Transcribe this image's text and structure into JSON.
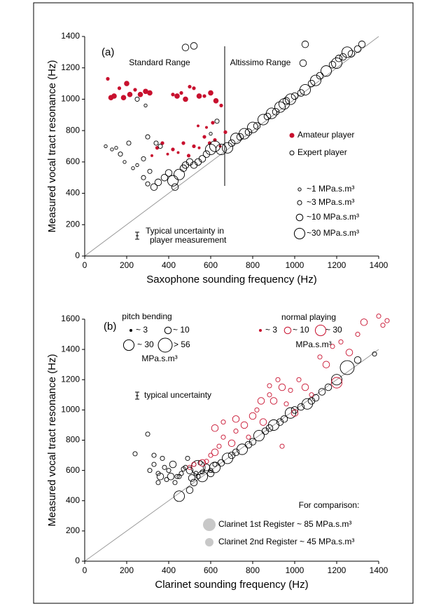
{
  "chart_data": [
    {
      "type": "scatter",
      "panel_label": "(a)",
      "x_label": "Saxophone sounding frequency (Hz)",
      "y_label": "Measured vocal tract resonance (Hz)",
      "xlim": [
        0,
        1400
      ],
      "ylim": [
        0,
        1400
      ],
      "xticks": [
        0,
        200,
        400,
        600,
        800,
        1000,
        1200,
        1400
      ],
      "yticks": [
        0,
        200,
        400,
        600,
        800,
        1000,
        1200,
        1400
      ],
      "annotations": [
        "Standard Range",
        "Altissimo Range"
      ],
      "uncertainty_note": [
        "Typical uncertainty in",
        "player measurement"
      ],
      "size_legend": [
        {
          "label": "~1 MPa.s.m³",
          "size": 1
        },
        {
          "label": "~3 MPa.s.m³",
          "size": 3
        },
        {
          "label": "~10 MPa.s.m³",
          "size": 10
        },
        {
          "label": "~30 MPa.s.m³",
          "size": 30
        }
      ],
      "series": [
        {
          "name": "Amateur player",
          "color": "#c8102e",
          "fill": true,
          "x": [
            110,
            125,
            140,
            165,
            185,
            200,
            215,
            240,
            265,
            290,
            310,
            420,
            440,
            460,
            480,
            500,
            520,
            545,
            570,
            600,
            625,
            650,
            320,
            345,
            370,
            395,
            420,
            445,
            470,
            495,
            520,
            545,
            570,
            595,
            620,
            645,
            670,
            540,
            580,
            610
          ],
          "values": [
            1130,
            1010,
            1020,
            1070,
            1010,
            1100,
            1030,
            1060,
            1030,
            1050,
            1040,
            1030,
            1020,
            1040,
            1000,
            1080,
            1070,
            1020,
            1020,
            1040,
            990,
            960,
            640,
            690,
            720,
            650,
            680,
            660,
            720,
            640,
            700,
            690,
            760,
            720,
            740,
            700,
            790,
            830,
            820,
            850
          ],
          "sizes": [
            3,
            10,
            10,
            3,
            10,
            10,
            10,
            3,
            10,
            10,
            10,
            3,
            10,
            3,
            10,
            3,
            3,
            10,
            3,
            10,
            10,
            3,
            1,
            3,
            3,
            1,
            3,
            1,
            3,
            3,
            3,
            1,
            3,
            3,
            3,
            1,
            3,
            1,
            1,
            3
          ]
        },
        {
          "name": "Expert player",
          "color": "#000000",
          "fill": false,
          "x": [
            100,
            130,
            150,
            170,
            190,
            210,
            230,
            250,
            280,
            300,
            310,
            330,
            350,
            380,
            400,
            420,
            430,
            450,
            470,
            480,
            500,
            520,
            540,
            560,
            580,
            600,
            620,
            280,
            300,
            340,
            360,
            290,
            250,
            650,
            680,
            700,
            720,
            740,
            760,
            780,
            800,
            820,
            850,
            870,
            890,
            910,
            930,
            950,
            960,
            980,
            1000,
            1030,
            1050,
            1080,
            1100,
            1120,
            1150,
            1180,
            1200,
            1210,
            1230,
            1250,
            1270,
            1300,
            1320,
            480,
            520,
            1050,
            1040,
            600,
            630
          ],
          "values": [
            700,
            680,
            690,
            650,
            600,
            720,
            560,
            580,
            620,
            760,
            540,
            440,
            470,
            500,
            530,
            480,
            440,
            520,
            560,
            580,
            600,
            580,
            600,
            620,
            650,
            680,
            700,
            500,
            460,
            720,
            700,
            960,
            1000,
            680,
            690,
            720,
            750,
            760,
            780,
            790,
            820,
            830,
            870,
            890,
            910,
            920,
            950,
            970,
            990,
            1000,
            1020,
            1040,
            1060,
            1100,
            1120,
            1150,
            1180,
            1220,
            1230,
            1260,
            1270,
            1300,
            1290,
            1320,
            1350,
            1330,
            1340,
            1350,
            1230,
            780,
            860
          ],
          "sizes": [
            1,
            1,
            1,
            3,
            1,
            3,
            1,
            1,
            3,
            3,
            3,
            10,
            10,
            10,
            10,
            30,
            10,
            30,
            10,
            10,
            10,
            10,
            10,
            10,
            10,
            30,
            30,
            3,
            3,
            3,
            3,
            1,
            3,
            30,
            30,
            10,
            30,
            10,
            30,
            10,
            30,
            10,
            30,
            10,
            30,
            10,
            30,
            30,
            10,
            30,
            10,
            10,
            30,
            10,
            30,
            10,
            30,
            10,
            30,
            10,
            10,
            30,
            10,
            10,
            10,
            10,
            10,
            10,
            10,
            1,
            3
          ]
        }
      ]
    },
    {
      "type": "scatter",
      "panel_label": "(b)",
      "x_label": "Clarinet sounding frequency (Hz)",
      "y_label": "Measured vocal tract resonance (Hz)",
      "xlim": [
        0,
        1400
      ],
      "ylim": [
        0,
        1600
      ],
      "xticks": [
        0,
        200,
        400,
        600,
        800,
        1000,
        1200,
        1400
      ],
      "yticks": [
        0,
        200,
        400,
        600,
        800,
        1000,
        1200,
        1400,
        1600
      ],
      "uncertainty_note": [
        "typical uncertainty"
      ],
      "pitch_bending": {
        "title": "pitch bending",
        "items": [
          {
            "label": "~ 3",
            "size": 3
          },
          {
            "label": "~ 10",
            "size": 10
          },
          {
            "label": "~ 30",
            "size": 30
          },
          {
            "label": "> 56",
            "size": 56
          }
        ],
        "unit": "MPa.s.m³"
      },
      "normal_playing": {
        "title": "normal playing",
        "items": [
          {
            "label": "~ 3",
            "size": 3
          },
          {
            "label": "~ 10",
            "size": 10
          },
          {
            "label": "~ 30",
            "size": 30
          }
        ],
        "unit": "MPa.s.m³"
      },
      "comparison": {
        "title": "For comparison:",
        "items": [
          "Clarinet 1st Register ~ 85 MPa.s.m³",
          "Clarinet 2nd Register ~ 45 MPa.s.m³"
        ]
      },
      "series": [
        {
          "name": "pitch bending",
          "color": "#000000",
          "fill": false,
          "x": [
            240,
            300,
            310,
            330,
            350,
            360,
            380,
            400,
            420,
            440,
            460,
            480,
            500,
            520,
            540,
            560,
            580,
            600,
            620,
            370,
            390,
            410,
            430,
            450,
            470,
            490,
            510,
            530,
            550,
            330,
            350,
            450,
            500,
            520,
            560,
            600,
            620,
            650,
            680,
            700,
            720,
            750,
            780,
            800,
            830,
            860,
            880,
            900,
            930,
            950,
            980,
            1000,
            1030,
            1060,
            1080,
            1100,
            1130,
            1160,
            1200,
            1250,
            1300,
            1380,
            540
          ],
          "values": [
            710,
            840,
            600,
            640,
            580,
            560,
            620,
            600,
            640,
            560,
            580,
            620,
            600,
            640,
            560,
            590,
            620,
            600,
            640,
            680,
            540,
            560,
            520,
            560,
            610,
            680,
            550,
            580,
            650,
            700,
            520,
            430,
            470,
            520,
            560,
            580,
            620,
            650,
            680,
            700,
            720,
            740,
            770,
            790,
            830,
            860,
            880,
            900,
            920,
            940,
            980,
            1000,
            1020,
            1040,
            1060,
            1080,
            1120,
            1150,
            1200,
            1280,
            1330,
            1370,
            620
          ],
          "sizes": [
            3,
            3,
            3,
            3,
            3,
            10,
            3,
            3,
            10,
            3,
            3,
            3,
            10,
            3,
            3,
            3,
            10,
            3,
            3,
            3,
            3,
            10,
            3,
            3,
            3,
            3,
            10,
            3,
            3,
            3,
            3,
            30,
            10,
            10,
            30,
            10,
            30,
            10,
            30,
            10,
            10,
            30,
            10,
            10,
            30,
            10,
            10,
            30,
            10,
            10,
            30,
            10,
            10,
            30,
            10,
            10,
            10,
            10,
            30,
            56,
            10,
            3,
            56
          ]
        },
        {
          "name": "normal playing",
          "color": "#c8102e",
          "fill": false,
          "x": [
            500,
            520,
            560,
            580,
            600,
            620,
            640,
            660,
            700,
            720,
            760,
            780,
            800,
            820,
            850,
            880,
            900,
            920,
            940,
            960,
            980,
            1000,
            1020,
            1050,
            1080,
            1120,
            1150,
            1180,
            1200,
            1220,
            1260,
            1300,
            1330,
            1400,
            1420,
            1440,
            940,
            620,
            660,
            720,
            840,
            880
          ],
          "values": [
            620,
            640,
            650,
            660,
            700,
            720,
            760,
            820,
            780,
            860,
            900,
            820,
            960,
            1000,
            920,
            1100,
            1060,
            1200,
            1150,
            1040,
            1130,
            980,
            1200,
            1150,
            1100,
            1350,
            1300,
            1420,
            1180,
            1450,
            1380,
            1500,
            1580,
            1620,
            1560,
            1590,
            760,
            880,
            920,
            940,
            1060,
            1160
          ],
          "sizes": [
            3,
            3,
            10,
            3,
            3,
            10,
            3,
            3,
            10,
            3,
            10,
            3,
            10,
            3,
            10,
            3,
            10,
            3,
            10,
            3,
            3,
            10,
            3,
            10,
            3,
            3,
            10,
            3,
            30,
            3,
            10,
            3,
            10,
            3,
            3,
            3,
            3,
            10,
            3,
            10,
            10,
            3
          ]
        }
      ]
    }
  ]
}
